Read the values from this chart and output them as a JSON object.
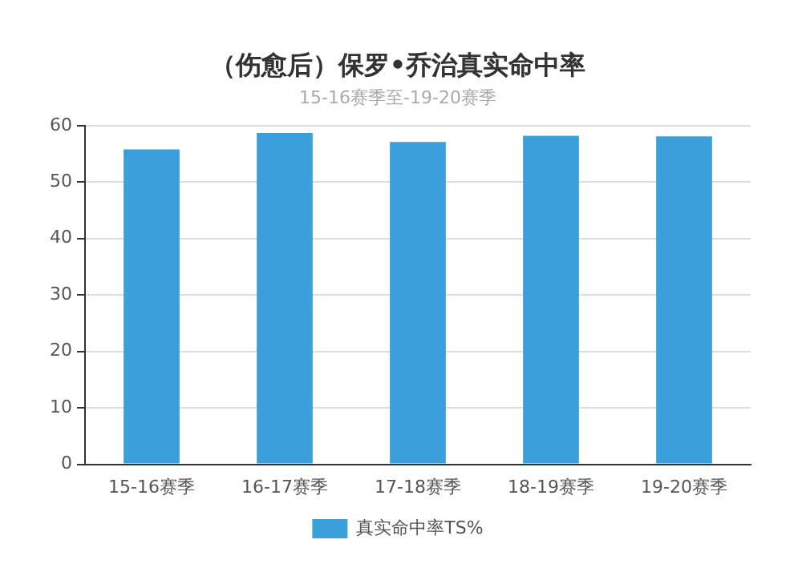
{
  "chart_data": {
    "type": "bar",
    "title": "（伤愈后）保罗•乔治真实命中率",
    "subtitle": "15-16赛季至-19-20赛季",
    "categories": [
      "15-16赛季",
      "16-17赛季",
      "17-18赛季",
      "18-19赛季",
      "19-20赛季"
    ],
    "series": [
      {
        "name": "真实命中率TS%",
        "color": "#3a9fda",
        "values": [
          55.8,
          58.7,
          57.1,
          58.2,
          58.1
        ]
      }
    ],
    "ylim": [
      0,
      60
    ],
    "yticks": [
      0,
      10,
      20,
      30,
      40,
      50,
      60
    ],
    "grid": "y",
    "legend": "bottom"
  }
}
